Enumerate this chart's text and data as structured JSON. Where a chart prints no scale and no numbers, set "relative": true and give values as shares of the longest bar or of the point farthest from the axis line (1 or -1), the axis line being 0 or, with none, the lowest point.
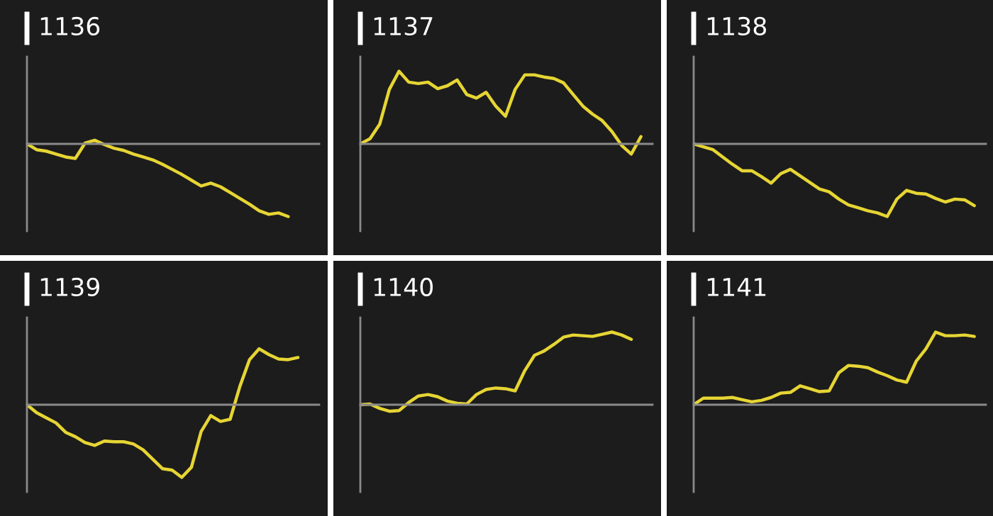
{
  "chart_data": [
    {
      "type": "line",
      "title": "1136",
      "relative": true,
      "categories": [
        null,
        null,
        null,
        null,
        null,
        null,
        null,
        null,
        null,
        null,
        null,
        null,
        null,
        null,
        null,
        null,
        null,
        null,
        null,
        null,
        null,
        null,
        null,
        null,
        null,
        null,
        null,
        null
      ],
      "series": [
        {
          "color": "#e6d534",
          "values": [
            0,
            -0.08,
            -0.1,
            -0.14,
            -0.18,
            -0.2,
            0.01,
            0.05,
            -0.01,
            -0.06,
            -0.09,
            -0.14,
            -0.18,
            -0.22,
            -0.28,
            -0.35,
            -0.42,
            -0.5,
            -0.58,
            -0.54,
            -0.59,
            -0.67,
            -0.75,
            -0.83,
            -0.92,
            -0.97,
            -0.95,
            -1
          ]
        }
      ]
    },
    {
      "type": "line",
      "title": "1137",
      "relative": true,
      "categories": [
        null,
        null,
        null,
        null,
        null,
        null,
        null,
        null,
        null,
        null,
        null,
        null,
        null,
        null,
        null,
        null,
        null,
        null,
        null,
        null,
        null,
        null,
        null,
        null,
        null,
        null,
        null,
        null,
        null,
        null
      ],
      "series": [
        {
          "color": "#e6d534",
          "values": [
            0,
            0.07,
            0.27,
            0.75,
            1,
            0.85,
            0.83,
            0.85,
            0.76,
            0.8,
            0.88,
            0.68,
            0.63,
            0.71,
            0.52,
            0.38,
            0.75,
            0.95,
            0.95,
            0.92,
            0.9,
            0.84,
            0.68,
            0.52,
            0.41,
            0.32,
            0.17,
            -0.02,
            -0.14,
            0.1
          ]
        }
      ]
    },
    {
      "type": "line",
      "title": "1138",
      "relative": true,
      "categories": [
        null,
        null,
        null,
        null,
        null,
        null,
        null,
        null,
        null,
        null,
        null,
        null,
        null,
        null,
        null,
        null,
        null,
        null,
        null,
        null,
        null,
        null,
        null,
        null,
        null,
        null,
        null,
        null,
        null,
        null
      ],
      "series": [
        {
          "color": "#e6d534",
          "values": [
            0,
            -0.04,
            -0.08,
            -0.18,
            -0.28,
            -0.37,
            -0.37,
            -0.45,
            -0.54,
            -0.41,
            -0.35,
            -0.44,
            -0.53,
            -0.62,
            -0.66,
            -0.76,
            -0.84,
            -0.88,
            -0.92,
            -0.95,
            -1,
            -0.76,
            -0.64,
            -0.68,
            -0.69,
            -0.75,
            -0.8,
            -0.76,
            -0.77,
            -0.85
          ]
        }
      ]
    },
    {
      "type": "line",
      "title": "1139",
      "relative": true,
      "categories": [
        null,
        null,
        null,
        null,
        null,
        null,
        null,
        null,
        null,
        null,
        null,
        null,
        null,
        null,
        null,
        null,
        null,
        null,
        null,
        null,
        null,
        null,
        null,
        null,
        null,
        null,
        null,
        null,
        null
      ],
      "series": [
        {
          "color": "#e6d534",
          "values": [
            0,
            -0.11,
            -0.18,
            -0.25,
            -0.38,
            -0.44,
            -0.52,
            -0.56,
            -0.5,
            -0.51,
            -0.51,
            -0.54,
            -0.62,
            -0.75,
            -0.88,
            -0.9,
            -1,
            -0.86,
            -0.37,
            -0.15,
            -0.23,
            -0.2,
            0.25,
            0.62,
            0.77,
            0.69,
            0.63,
            0.62,
            0.65
          ]
        }
      ]
    },
    {
      "type": "line",
      "title": "1140",
      "relative": true,
      "categories": [
        null,
        null,
        null,
        null,
        null,
        null,
        null,
        null,
        null,
        null,
        null,
        null,
        null,
        null,
        null,
        null,
        null,
        null,
        null,
        null,
        null,
        null,
        null,
        null,
        null,
        null,
        null,
        null,
        null
      ],
      "series": [
        {
          "color": "#e6d534",
          "values": [
            0,
            0.01,
            -0.05,
            -0.09,
            -0.08,
            0.03,
            0.12,
            0.14,
            0.11,
            0.05,
            0.02,
            0.01,
            0.14,
            0.21,
            0.23,
            0.22,
            0.19,
            0.47,
            0.68,
            0.74,
            0.83,
            0.93,
            0.96,
            0.95,
            0.94,
            0.97,
            1,
            0.96,
            0.9
          ]
        }
      ]
    },
    {
      "type": "line",
      "title": "1141",
      "relative": true,
      "categories": [
        null,
        null,
        null,
        null,
        null,
        null,
        null,
        null,
        null,
        null,
        null,
        null,
        null,
        null,
        null,
        null,
        null,
        null,
        null,
        null,
        null,
        null,
        null,
        null,
        null,
        null,
        null,
        null,
        null,
        null
      ],
      "series": [
        {
          "color": "#e6d534",
          "values": [
            0,
            0.09,
            0.09,
            0.09,
            0.1,
            0.07,
            0.04,
            0.06,
            0.1,
            0.16,
            0.17,
            0.26,
            0.22,
            0.18,
            0.19,
            0.44,
            0.54,
            0.53,
            0.51,
            0.45,
            0.4,
            0.34,
            0.31,
            0.6,
            0.77,
            1,
            0.95,
            0.95,
            0.96,
            0.94
          ]
        }
      ]
    }
  ]
}
